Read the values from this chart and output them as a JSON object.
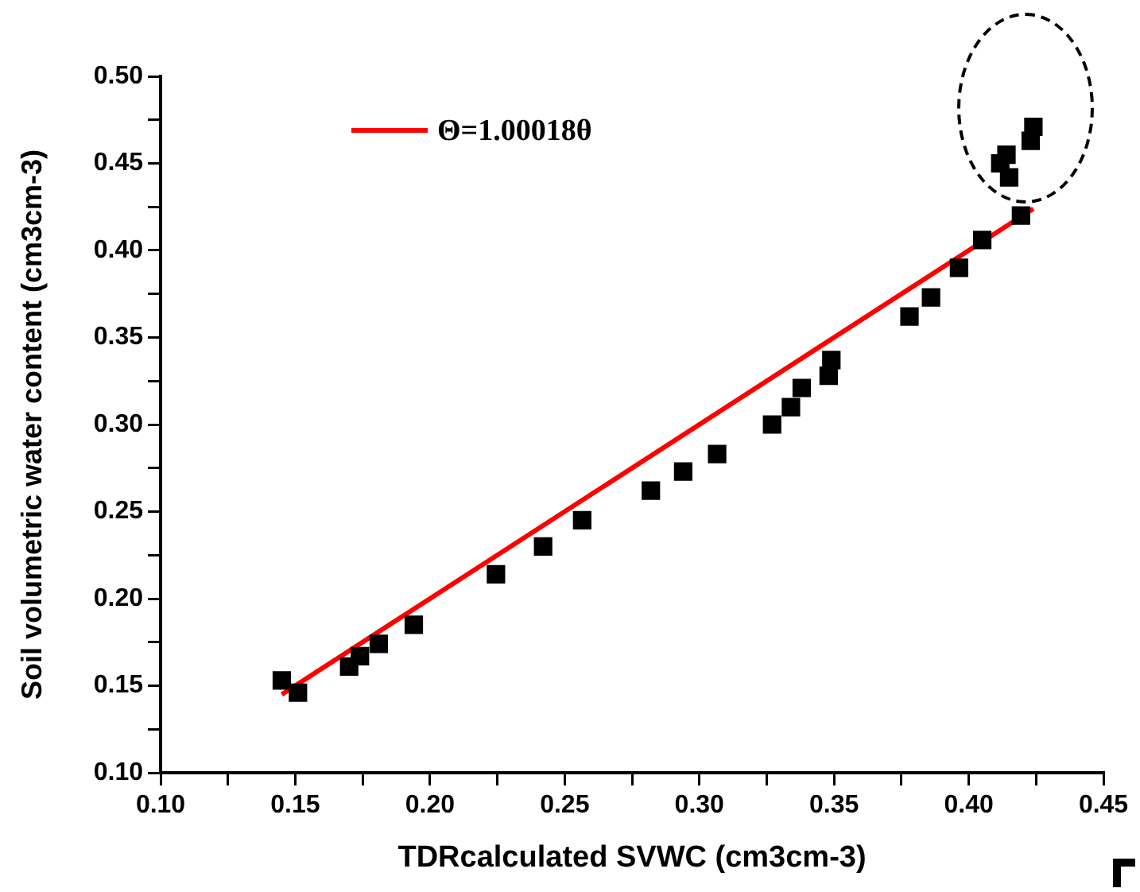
{
  "chart_data": {
    "type": "scatter",
    "xlabel": "TDRcalculated SVWC (cm3cm-3)",
    "ylabel": "Soil volumetric water content (cm3cm-3)",
    "xlim": [
      0.1,
      0.45
    ],
    "xticks": [
      {
        "value": 0.1,
        "label": "0.10"
      },
      {
        "value": 0.125,
        "label": null
      },
      0.15,
      {
        "value": 0.175,
        "label": null
      },
      {
        "value": 0.2,
        "label": "0.20"
      },
      {
        "value": 0.225,
        "label": null
      },
      0.25,
      {
        "value": 0.275,
        "label": null
      },
      {
        "value": 0.3,
        "label": "0.30"
      },
      {
        "value": 0.325,
        "label": null
      },
      0.35,
      {
        "value": 0.375,
        "label": null
      },
      {
        "value": 0.4,
        "label": "0.40"
      },
      {
        "value": 0.425,
        "label": null
      },
      0.45
    ],
    "ylim": [
      0.1,
      0.5
    ],
    "yticks": [
      {
        "value": 0.1,
        "label": "0.10"
      },
      {
        "value": 0.125,
        "label": null
      },
      0.15,
      {
        "value": 0.175,
        "label": null
      },
      {
        "value": 0.2,
        "label": "0.20"
      },
      {
        "value": 0.225,
        "label": null
      },
      0.25,
      {
        "value": 0.275,
        "label": null
      },
      {
        "value": 0.3,
        "label": "0.30"
      },
      {
        "value": 0.325,
        "label": null
      },
      0.35,
      {
        "value": 0.375,
        "label": null
      },
      {
        "value": 0.4,
        "label": "0.40"
      },
      {
        "value": 0.425,
        "label": null
      },
      0.45,
      {
        "value": 0.475,
        "label": null
      },
      {
        "value": 0.5,
        "label": "0.50"
      }
    ],
    "grid": false,
    "legend": "top left",
    "series": [
      {
        "marker": "square",
        "color": "#000000",
        "x": [
          0.145,
          0.151,
          0.17,
          0.174,
          0.181,
          0.194,
          0.2245,
          0.242,
          0.2565,
          0.282,
          0.294,
          0.3066,
          0.327,
          0.334,
          0.338,
          0.348,
          0.349,
          0.378,
          0.386,
          0.3964,
          0.405,
          0.4194,
          0.4117,
          0.414,
          0.415,
          0.423,
          0.424
        ],
        "values": [
          0.153,
          0.146,
          0.161,
          0.167,
          0.174,
          0.185,
          0.214,
          0.23,
          0.245,
          0.262,
          0.273,
          0.283,
          0.3,
          0.31,
          0.321,
          0.328,
          0.337,
          0.362,
          0.373,
          0.39,
          0.406,
          0.42,
          0.45,
          0.455,
          0.442,
          0.463,
          0.471
        ]
      },
      {
        "type": "line",
        "marker": "none",
        "name": "Θ=1.00018θ",
        "color": "#ff0000",
        "x": [
          0.145,
          0.424
        ],
        "values": [
          0.145,
          0.424
        ]
      }
    ]
  }
}
